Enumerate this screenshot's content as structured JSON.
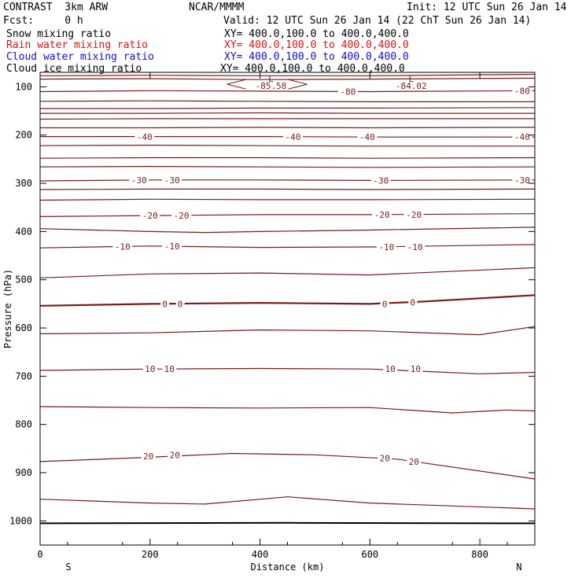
{
  "header": {
    "model": "CONTRAST  3km ARW",
    "center": "NCAR/MMMM",
    "init": "Init: 12 UTC Sun 26 Jan 14",
    "fcst": "Fcst:     0 h",
    "valid": "Valid: 12 UTC Sun 26 Jan 14 (22 ChT Sun 26 Jan 14)"
  },
  "fields": [
    {
      "name": "Snow mixing ratio",
      "xy": "XY= 400.0,100.0 to 400.0,400.0",
      "color": "#000000"
    },
    {
      "name": "Rain water mixing ratio",
      "xy": "XY= 400.0,100.0 to 400.0,400.0",
      "color": "#e01010"
    },
    {
      "name": "Cloud water mixing ratio",
      "xy": "XY= 400.0,100.0 to 400.0,400.0",
      "color": "#1010d0"
    },
    {
      "name": "Cloud ice mixing ratio",
      "xy": "XY= 400.0,100.0 to 400.0,400.0",
      "color": "#000000"
    }
  ],
  "chart_data": {
    "type": "line",
    "xlabel": "Distance (km)",
    "ylabel": "Pressure (hPa)",
    "xlim": [
      0,
      900
    ],
    "ylim": [
      1050,
      70
    ],
    "xticks": [
      "0",
      "200",
      "400",
      "600",
      "800"
    ],
    "xtick_values": [
      0,
      200,
      400,
      600,
      800
    ],
    "yticks": [
      "100",
      "200",
      "300",
      "400",
      "500",
      "600",
      "700",
      "800",
      "900",
      "1000"
    ],
    "ytick_values": [
      100,
      200,
      300,
      400,
      500,
      600,
      700,
      800,
      900,
      1000
    ],
    "end_labels": {
      "left": "S",
      "right": "N"
    },
    "contour_color": "#7a1a1a",
    "contours": [
      {
        "points": [
          [
            0,
            77
          ],
          [
            200,
            76
          ],
          [
            400,
            77
          ],
          [
            600,
            77
          ],
          [
            900,
            74
          ]
        ]
      },
      {
        "points": [
          [
            0,
            84
          ],
          [
            200,
            83
          ],
          [
            400,
            85
          ],
          [
            600,
            84
          ],
          [
            900,
            82
          ]
        ]
      },
      {
        "points": [
          [
            0,
            110
          ],
          [
            200,
            108
          ],
          [
            400,
            109
          ],
          [
            600,
            110
          ],
          [
            900,
            108
          ]
        ]
      },
      {
        "points": [
          [
            0,
            130
          ],
          [
            200,
            129
          ],
          [
            400,
            130
          ],
          [
            600,
            131
          ],
          [
            900,
            131
          ]
        ]
      },
      {
        "points": [
          [
            0,
            145
          ],
          [
            200,
            145
          ],
          [
            400,
            144
          ],
          [
            600,
            144
          ],
          [
            900,
            143
          ]
        ]
      },
      {
        "points": [
          [
            0,
            155
          ],
          [
            200,
            155
          ],
          [
            400,
            154
          ],
          [
            600,
            155
          ],
          [
            900,
            155
          ]
        ]
      },
      {
        "points": [
          [
            0,
            167
          ],
          [
            200,
            166
          ],
          [
            400,
            166
          ],
          [
            600,
            166
          ],
          [
            900,
            166
          ]
        ]
      },
      {
        "points": [
          [
            0,
            185
          ],
          [
            200,
            185
          ],
          [
            400,
            184
          ],
          [
            600,
            185
          ],
          [
            900,
            184
          ]
        ]
      },
      {
        "points": [
          [
            0,
            203
          ],
          [
            200,
            203
          ],
          [
            400,
            203
          ],
          [
            600,
            204
          ],
          [
            900,
            204
          ]
        ]
      },
      {
        "points": [
          [
            0,
            222
          ],
          [
            200,
            221
          ],
          [
            400,
            222
          ],
          [
            600,
            223
          ],
          [
            900,
            223
          ]
        ]
      },
      {
        "points": [
          [
            0,
            248
          ],
          [
            200,
            247
          ],
          [
            400,
            247
          ],
          [
            600,
            248
          ],
          [
            900,
            247
          ]
        ]
      },
      {
        "points": [
          [
            0,
            266
          ],
          [
            200,
            265
          ],
          [
            400,
            266
          ],
          [
            600,
            267
          ],
          [
            900,
            266
          ]
        ]
      },
      {
        "points": [
          [
            0,
            295
          ],
          [
            200,
            293
          ],
          [
            400,
            293
          ],
          [
            600,
            294
          ],
          [
            900,
            293
          ]
        ]
      },
      {
        "points": [
          [
            0,
            313
          ],
          [
            200,
            312
          ],
          [
            400,
            312
          ],
          [
            600,
            313
          ],
          [
            900,
            312
          ]
        ]
      },
      {
        "points": [
          [
            0,
            335
          ],
          [
            200,
            333
          ],
          [
            400,
            334
          ],
          [
            600,
            334
          ],
          [
            900,
            333
          ]
        ]
      },
      {
        "points": [
          [
            0,
            369
          ],
          [
            200,
            367
          ],
          [
            400,
            365
          ],
          [
            600,
            365
          ],
          [
            900,
            363
          ]
        ]
      },
      {
        "points": [
          [
            0,
            394
          ],
          [
            200,
            400
          ],
          [
            300,
            402
          ],
          [
            400,
            400
          ],
          [
            600,
            397
          ],
          [
            900,
            391
          ]
        ]
      },
      {
        "points": [
          [
            0,
            434
          ],
          [
            200,
            430
          ],
          [
            400,
            433
          ],
          [
            600,
            432
          ],
          [
            900,
            427
          ]
        ]
      },
      {
        "points": [
          [
            0,
            496
          ],
          [
            200,
            488
          ],
          [
            400,
            486
          ],
          [
            600,
            490
          ],
          [
            900,
            475
          ]
        ]
      },
      {
        "points": [
          [
            0,
            554
          ],
          [
            200,
            550
          ],
          [
            400,
            548
          ],
          [
            600,
            550
          ],
          [
            700,
            545
          ],
          [
            900,
            532
          ]
        ],
        "bold": true
      },
      {
        "points": [
          [
            0,
            612
          ],
          [
            200,
            610
          ],
          [
            400,
            604
          ],
          [
            600,
            606
          ],
          [
            800,
            614
          ],
          [
            900,
            597
          ]
        ]
      },
      {
        "points": [
          [
            0,
            688
          ],
          [
            200,
            685
          ],
          [
            400,
            684
          ],
          [
            600,
            685
          ],
          [
            800,
            695
          ],
          [
            900,
            692
          ]
        ]
      },
      {
        "points": [
          [
            0,
            763
          ],
          [
            200,
            765
          ],
          [
            400,
            766
          ],
          [
            600,
            765
          ],
          [
            750,
            776
          ],
          [
            850,
            770
          ],
          [
            900,
            772
          ]
        ]
      },
      {
        "points": [
          [
            0,
            877
          ],
          [
            200,
            868
          ],
          [
            350,
            860
          ],
          [
            500,
            863
          ],
          [
            650,
            872
          ],
          [
            900,
            913
          ]
        ]
      },
      {
        "points": [
          [
            0,
            955
          ],
          [
            200,
            963
          ],
          [
            300,
            965
          ],
          [
            450,
            950
          ],
          [
            600,
            963
          ],
          [
            900,
            975
          ]
        ]
      },
      {
        "points": [
          [
            0,
            1005
          ],
          [
            450,
            1004
          ],
          [
            900,
            1005
          ]
        ],
        "ground": true
      }
    ],
    "contour_labels": [
      {
        "text": "-40",
        "x": 190,
        "y": 204
      },
      {
        "text": "-40",
        "x": 460,
        "y": 204
      },
      {
        "text": "-40",
        "x": 595,
        "y": 204
      },
      {
        "text": "-40",
        "x": 877,
        "y": 204
      },
      {
        "text": "-30",
        "x": 180,
        "y": 293
      },
      {
        "text": "-30",
        "x": 240,
        "y": 293
      },
      {
        "text": "-30",
        "x": 620,
        "y": 294
      },
      {
        "text": "-30",
        "x": 877,
        "y": 293
      },
      {
        "text": "-20",
        "x": 200,
        "y": 367
      },
      {
        "text": "-20",
        "x": 257,
        "y": 367
      },
      {
        "text": "-20",
        "x": 622,
        "y": 365
      },
      {
        "text": "-20",
        "x": 680,
        "y": 365
      },
      {
        "text": "-10",
        "x": 150,
        "y": 431
      },
      {
        "text": "-10",
        "x": 240,
        "y": 430
      },
      {
        "text": "-10",
        "x": 630,
        "y": 432
      },
      {
        "text": "-10",
        "x": 682,
        "y": 432
      },
      {
        "text": "0",
        "x": 227,
        "y": 550
      },
      {
        "text": "0",
        "x": 255,
        "y": 550
      },
      {
        "text": "0",
        "x": 627,
        "y": 550
      },
      {
        "text": "0",
        "x": 678,
        "y": 547
      },
      {
        "text": "10",
        "x": 200,
        "y": 685
      },
      {
        "text": "10",
        "x": 235,
        "y": 685
      },
      {
        "text": "10",
        "x": 637,
        "y": 685
      },
      {
        "text": "10",
        "x": 683,
        "y": 685
      },
      {
        "text": "20",
        "x": 197,
        "y": 866
      },
      {
        "text": "20",
        "x": 245,
        "y": 863
      },
      {
        "text": "20",
        "x": 627,
        "y": 870
      },
      {
        "text": "20",
        "x": 680,
        "y": 877
      },
      {
        "text": "-80",
        "x": 560,
        "y": 110
      },
      {
        "text": "-80",
        "x": 877,
        "y": 108
      }
    ],
    "minima": [
      {
        "marker": "L",
        "value": "-85.58",
        "x": 420,
        "y_marker": 83,
        "y_value": 98
      },
      {
        "marker": "L",
        "value": "-84.02",
        "x": 675,
        "y_marker": 83,
        "y_value": 98
      }
    ]
  }
}
